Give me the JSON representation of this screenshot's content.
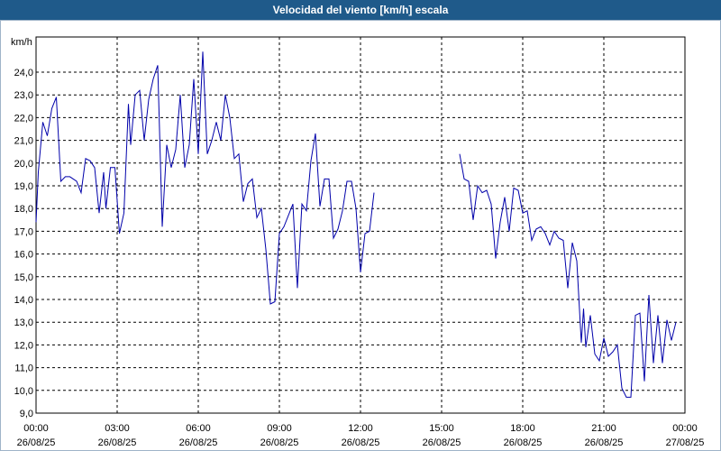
{
  "chart_data": {
    "type": "line",
    "title": "Velocidad del viento [km/h] escala",
    "ylabel": "km/h",
    "ylim": [
      9.0,
      25.0
    ],
    "grid": true,
    "y_ticks": [
      "9,0",
      "10,0",
      "11,0",
      "12,0",
      "13,0",
      "14,0",
      "15,0",
      "16,0",
      "17,0",
      "18,0",
      "19,0",
      "20,0",
      "21,0",
      "22,0",
      "23,0",
      "24,0"
    ],
    "x_ticks": [
      {
        "time": "00:00",
        "date": "26/08/25"
      },
      {
        "time": "03:00",
        "date": "26/08/25"
      },
      {
        "time": "06:00",
        "date": "26/08/25"
      },
      {
        "time": "09:00",
        "date": "26/08/25"
      },
      {
        "time": "12:00",
        "date": "26/08/25"
      },
      {
        "time": "15:00",
        "date": "26/08/25"
      },
      {
        "time": "18:00",
        "date": "26/08/25"
      },
      {
        "time": "21:00",
        "date": "26/08/25"
      },
      {
        "time": "00:00",
        "date": "27/08/25"
      }
    ],
    "series": [
      {
        "color": "#0000aa",
        "segments": [
          [
            [
              "00:00",
              17.4
            ],
            [
              "00:05",
              19.6
            ],
            [
              "00:15",
              21.8
            ],
            [
              "00:25",
              21.2
            ],
            [
              "00:35",
              22.4
            ],
            [
              "00:45",
              22.9
            ],
            [
              "00:55",
              19.2
            ],
            [
              "01:05",
              19.4
            ],
            [
              "01:15",
              19.4
            ],
            [
              "01:30",
              19.2
            ],
            [
              "01:40",
              18.7
            ],
            [
              "01:50",
              20.2
            ],
            [
              "02:00",
              20.1
            ],
            [
              "02:10",
              19.8
            ],
            [
              "02:20",
              17.8
            ],
            [
              "02:30",
              19.6
            ],
            [
              "02:35",
              18.0
            ],
            [
              "02:45",
              19.8
            ],
            [
              "02:55",
              19.8
            ],
            [
              "03:05",
              16.9
            ],
            [
              "03:15",
              17.8
            ],
            [
              "03:25",
              22.6
            ],
            [
              "03:30",
              20.8
            ],
            [
              "03:40",
              23.0
            ],
            [
              "03:50",
              23.2
            ],
            [
              "04:00",
              21.0
            ],
            [
              "04:10",
              22.8
            ],
            [
              "04:20",
              23.7
            ],
            [
              "04:30",
              24.3
            ],
            [
              "04:40",
              17.2
            ],
            [
              "04:50",
              20.8
            ],
            [
              "05:00",
              19.8
            ],
            [
              "05:10",
              20.6
            ],
            [
              "05:20",
              23.0
            ],
            [
              "05:30",
              19.8
            ],
            [
              "05:40",
              20.8
            ],
            [
              "05:50",
              23.7
            ],
            [
              "06:00",
              20.4
            ],
            [
              "06:10",
              24.9
            ],
            [
              "06:20",
              20.4
            ],
            [
              "06:30",
              21.0
            ],
            [
              "06:40",
              21.8
            ],
            [
              "06:50",
              21.0
            ],
            [
              "07:00",
              23.0
            ],
            [
              "07:10",
              22.0
            ],
            [
              "07:20",
              20.2
            ],
            [
              "07:30",
              20.4
            ],
            [
              "07:40",
              18.3
            ],
            [
              "07:50",
              19.1
            ],
            [
              "08:00",
              19.3
            ],
            [
              "08:10",
              17.6
            ],
            [
              "08:20",
              18.0
            ],
            [
              "08:30",
              16.2
            ],
            [
              "08:40",
              13.8
            ],
            [
              "08:50",
              13.9
            ],
            [
              "09:00",
              16.9
            ],
            [
              "09:10",
              17.2
            ],
            [
              "09:20",
              17.7
            ],
            [
              "09:30",
              18.2
            ],
            [
              "09:40",
              14.5
            ],
            [
              "09:50",
              18.2
            ],
            [
              "10:00",
              17.9
            ],
            [
              "10:10",
              20.1
            ],
            [
              "10:20",
              21.3
            ],
            [
              "10:30",
              18.1
            ],
            [
              "10:40",
              19.3
            ],
            [
              "10:50",
              19.3
            ],
            [
              "11:00",
              16.7
            ],
            [
              "11:10",
              17.1
            ],
            [
              "11:20",
              17.9
            ],
            [
              "11:30",
              19.2
            ],
            [
              "11:40",
              19.2
            ],
            [
              "11:50",
              18.0
            ],
            [
              "12:00",
              15.2
            ],
            [
              "12:10",
              16.9
            ],
            [
              "12:20",
              17.0
            ],
            [
              "12:30",
              18.7
            ]
          ],
          [
            [
              "15:40",
              20.4
            ],
            [
              "15:50",
              19.3
            ],
            [
              "16:00",
              19.2
            ],
            [
              "16:10",
              17.5
            ],
            [
              "16:20",
              19.0
            ],
            [
              "16:30",
              18.7
            ],
            [
              "16:40",
              18.8
            ],
            [
              "16:50",
              18.2
            ],
            [
              "17:00",
              15.8
            ],
            [
              "17:10",
              17.4
            ],
            [
              "17:20",
              18.5
            ],
            [
              "17:30",
              17.0
            ],
            [
              "17:40",
              18.9
            ],
            [
              "17:50",
              18.8
            ],
            [
              "18:00",
              17.8
            ],
            [
              "18:10",
              17.9
            ],
            [
              "18:20",
              16.6
            ],
            [
              "18:30",
              17.1
            ],
            [
              "18:40",
              17.2
            ],
            [
              "18:50",
              16.9
            ],
            [
              "19:00",
              16.4
            ],
            [
              "19:10",
              17.0
            ],
            [
              "19:20",
              16.7
            ],
            [
              "19:30",
              16.6
            ],
            [
              "19:40",
              14.5
            ],
            [
              "19:50",
              16.5
            ],
            [
              "20:00",
              15.7
            ],
            [
              "20:10",
              12.1
            ],
            [
              "20:15",
              13.6
            ],
            [
              "20:20",
              11.9
            ],
            [
              "20:30",
              13.3
            ],
            [
              "20:40",
              11.6
            ],
            [
              "20:50",
              11.3
            ],
            [
              "21:00",
              12.3
            ],
            [
              "21:10",
              11.5
            ],
            [
              "21:20",
              11.7
            ],
            [
              "21:30",
              12.0
            ],
            [
              "21:40",
              10.1
            ],
            [
              "21:50",
              9.7
            ],
            [
              "22:00",
              9.7
            ],
            [
              "22:10",
              13.3
            ],
            [
              "22:20",
              13.4
            ],
            [
              "22:30",
              10.4
            ],
            [
              "22:40",
              14.2
            ],
            [
              "22:50",
              11.2
            ],
            [
              "23:00",
              13.3
            ],
            [
              "23:10",
              11.2
            ],
            [
              "23:20",
              13.1
            ],
            [
              "23:30",
              12.2
            ],
            [
              "23:40",
              13.0
            ]
          ]
        ]
      }
    ]
  }
}
